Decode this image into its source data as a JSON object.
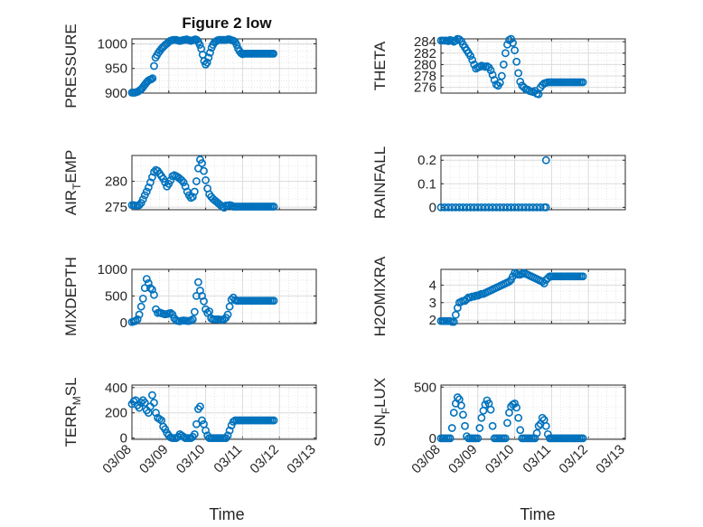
{
  "figure": {
    "title": "Figure 2 low",
    "marker_color": "#0072bd",
    "date_ticks": [
      "03/08",
      "03/09",
      "03/10",
      "03/11",
      "03/12",
      "03/13"
    ],
    "xlabel": "Time"
  },
  "chart_data": [
    {
      "type": "scatter",
      "name": "pressure",
      "ylabel": "PRESSURE",
      "ylim": [
        900,
        1010
      ],
      "yticks": [
        900,
        950,
        1000
      ],
      "ytick_labels": [
        "900",
        "950",
        "1000"
      ],
      "xlim": [
        0,
        5
      ],
      "x": [
        0,
        0.04,
        0.08,
        0.12,
        0.16,
        0.2,
        0.24,
        0.28,
        0.32,
        0.36,
        0.4,
        0.44,
        0.48,
        0.52,
        0.56,
        0.6,
        0.64,
        0.68,
        0.72,
        0.76,
        0.8,
        0.84,
        0.88,
        0.92,
        0.96,
        1.0,
        1.04,
        1.08,
        1.12,
        1.16,
        1.2,
        1.24,
        1.28,
        1.32,
        1.36,
        1.4,
        1.44,
        1.48,
        1.52,
        1.56,
        1.6,
        1.64,
        1.68,
        1.72,
        1.76,
        1.8,
        1.84,
        1.88,
        1.92,
        1.96,
        2.0,
        2.04,
        2.08,
        2.12,
        2.16,
        2.2,
        2.24,
        2.28,
        2.32,
        2.36,
        2.4,
        2.44,
        2.48,
        2.52,
        2.56,
        2.6,
        2.64,
        2.68,
        2.72,
        2.76,
        2.8,
        2.84,
        2.88,
        2.92,
        2.96,
        3.0,
        3.04,
        3.08,
        3.12,
        3.16,
        3.2,
        3.24,
        3.28,
        3.32,
        3.36,
        3.4,
        3.44,
        3.48,
        3.52,
        3.56,
        3.6,
        3.64,
        3.68,
        3.72,
        3.76,
        3.8,
        3.84
      ],
      "y": [
        901,
        901,
        901,
        902,
        903,
        905,
        907,
        910,
        914,
        918,
        922,
        925,
        927,
        928,
        930,
        955,
        972,
        977,
        982,
        986,
        990,
        993,
        996,
        999,
        1001,
        1004,
        1006,
        1007,
        1008,
        1008,
        1008,
        1007,
        1006,
        1006,
        1007,
        1008,
        1008,
        1009,
        1008,
        1007,
        1006,
        1007,
        1008,
        1009,
        1008,
        1004,
        998,
        990,
        978,
        965,
        958,
        962,
        972,
        982,
        992,
        998,
        1003,
        1005,
        1007,
        1008,
        1008,
        1008,
        1008,
        1008,
        1008,
        1009,
        1009,
        1008,
        1007,
        1006,
        1004,
        998,
        990,
        985,
        981,
        979,
        980,
        980,
        980,
        980,
        980,
        980,
        980,
        980,
        980,
        980,
        980,
        980,
        980,
        980,
        980,
        980,
        980,
        980,
        980,
        980,
        980
      ]
    },
    {
      "type": "scatter",
      "name": "theta",
      "ylabel": "THETA",
      "ylim": [
        275,
        284.5
      ],
      "yticks": [
        276,
        278,
        280,
        282,
        284
      ],
      "ytick_labels": [
        "276",
        "278",
        "280",
        "282",
        "284"
      ],
      "xlim": [
        0,
        5
      ],
      "x": [
        0,
        0.05,
        0.1,
        0.15,
        0.2,
        0.25,
        0.3,
        0.35,
        0.4,
        0.45,
        0.5,
        0.55,
        0.6,
        0.65,
        0.7,
        0.75,
        0.8,
        0.85,
        0.9,
        0.95,
        1.0,
        1.05,
        1.1,
        1.15,
        1.2,
        1.25,
        1.3,
        1.35,
        1.4,
        1.45,
        1.5,
        1.55,
        1.6,
        1.65,
        1.7,
        1.75,
        1.8,
        1.85,
        1.9,
        1.95,
        2.0,
        2.05,
        2.1,
        2.15,
        2.2,
        2.25,
        2.3,
        2.35,
        2.4,
        2.45,
        2.5,
        2.55,
        2.6,
        2.65,
        2.7,
        2.75,
        2.8,
        2.85,
        2.9,
        2.95,
        3.0,
        3.05,
        3.1,
        3.15,
        3.2,
        3.25,
        3.3,
        3.35,
        3.4,
        3.45,
        3.5,
        3.55,
        3.6,
        3.65,
        3.7,
        3.75,
        3.8,
        3.85
      ],
      "y": [
        284.2,
        284.2,
        284.2,
        284.2,
        284.1,
        284.3,
        284.2,
        284.0,
        284.2,
        284.5,
        284.4,
        284.1,
        283.5,
        283.0,
        282.5,
        282.0,
        281.5,
        280.8,
        280.0,
        279.3,
        279.5,
        279.6,
        279.8,
        279.7,
        279.6,
        279.7,
        279.5,
        279.0,
        278.2,
        277.3,
        276.5,
        276.3,
        276.8,
        278.0,
        280.0,
        282.0,
        283.5,
        284.3,
        284.5,
        283.8,
        282.5,
        280.5,
        278.5,
        277.0,
        276.3,
        276.0,
        275.7,
        275.6,
        275.4,
        275.3,
        275.2,
        275.4,
        274.9,
        274.8,
        276.0,
        276.4,
        276.7,
        276.8,
        276.9,
        276.9,
        276.9,
        276.9,
        276.9,
        276.9,
        276.9,
        276.9,
        276.9,
        276.9,
        276.9,
        276.9,
        276.9,
        276.9,
        276.9,
        276.9,
        276.9,
        276.9,
        276.9,
        276.9
      ]
    },
    {
      "type": "scatter",
      "name": "air_temp",
      "ylabel": "AIR_TEMP",
      "ylabel_main": "AIR",
      "ylabel_sub": "T",
      "ylabel_rest": "EMP",
      "ylim": [
        274.5,
        285
      ],
      "yticks": [
        275,
        280
      ],
      "ytick_labels": [
        "275",
        "280"
      ],
      "xlim": [
        0,
        5
      ],
      "x": [
        0,
        0.05,
        0.1,
        0.15,
        0.2,
        0.25,
        0.3,
        0.35,
        0.4,
        0.45,
        0.5,
        0.55,
        0.6,
        0.65,
        0.7,
        0.75,
        0.8,
        0.85,
        0.9,
        0.95,
        1.0,
        1.05,
        1.1,
        1.15,
        1.2,
        1.25,
        1.3,
        1.35,
        1.4,
        1.45,
        1.5,
        1.55,
        1.6,
        1.65,
        1.7,
        1.75,
        1.8,
        1.85,
        1.9,
        1.95,
        2.0,
        2.05,
        2.1,
        2.15,
        2.2,
        2.25,
        2.3,
        2.35,
        2.4,
        2.45,
        2.5,
        2.55,
        2.6,
        2.65,
        2.7,
        2.75,
        2.8,
        2.85,
        2.9,
        2.95,
        3.0,
        3.05,
        3.1,
        3.15,
        3.2,
        3.25,
        3.3,
        3.35,
        3.4,
        3.45,
        3.5,
        3.55,
        3.6,
        3.65,
        3.7,
        3.75,
        3.8,
        3.85
      ],
      "y": [
        275.4,
        275.4,
        275.3,
        275.3,
        275.4,
        275.8,
        276.5,
        277.3,
        278.0,
        278.8,
        279.8,
        280.8,
        281.8,
        282.2,
        282.0,
        281.5,
        281.0,
        280.5,
        279.8,
        279.0,
        279.5,
        280.2,
        281.0,
        281.2,
        281.0,
        280.8,
        280.5,
        280.2,
        279.8,
        279.0,
        278.0,
        277.3,
        276.8,
        277.0,
        278.0,
        280.0,
        282.5,
        284.2,
        283.5,
        282.0,
        280.2,
        278.6,
        277.5,
        277.0,
        276.6,
        276.3,
        276.0,
        275.7,
        275.4,
        275.1,
        274.9,
        275.3,
        275.3,
        275.4,
        275.3,
        275.1,
        275.1,
        275.1,
        275.1,
        275.1,
        275.1,
        275.1,
        275.1,
        275.1,
        275.1,
        275.1,
        275.1,
        275.1,
        275.1,
        275.1,
        275.1,
        275.1,
        275.1,
        275.1,
        275.1,
        275.1,
        275.1,
        275.1
      ]
    },
    {
      "type": "scatter",
      "name": "rainfall",
      "ylabel": "RAINFALL",
      "ylim": [
        -0.01,
        0.22
      ],
      "yticks": [
        0,
        0.1,
        0.2
      ],
      "ytick_labels": [
        "0",
        "0.1",
        "0.2"
      ],
      "xlim": [
        0,
        5
      ],
      "x": [
        0,
        0.1,
        0.2,
        0.3,
        0.4,
        0.5,
        0.6,
        0.7,
        0.8,
        0.9,
        1.0,
        1.1,
        1.2,
        1.3,
        1.4,
        1.5,
        1.6,
        1.7,
        1.8,
        1.9,
        2.0,
        2.1,
        2.2,
        2.3,
        2.4,
        2.5,
        2.6,
        2.7,
        2.8,
        2.85,
        2.85
      ],
      "y": [
        0,
        0,
        0,
        0,
        0,
        0,
        0,
        0,
        0,
        0,
        0,
        0,
        0,
        0,
        0,
        0,
        0,
        0,
        0,
        0,
        0,
        0,
        0,
        0,
        0,
        0,
        0,
        0,
        0,
        0,
        0.2
      ]
    },
    {
      "type": "scatter",
      "name": "mixdepth",
      "ylabel": "MIXDEPTH",
      "ylim": [
        -20,
        1000
      ],
      "yticks": [
        0,
        500,
        1000
      ],
      "ytick_labels": [
        "0",
        "500",
        "1000"
      ],
      "xlim": [
        0,
        5
      ],
      "x": [
        0,
        0.05,
        0.1,
        0.15,
        0.2,
        0.25,
        0.3,
        0.35,
        0.4,
        0.45,
        0.5,
        0.55,
        0.6,
        0.65,
        0.7,
        0.75,
        0.8,
        0.85,
        0.9,
        0.95,
        1.0,
        1.05,
        1.1,
        1.15,
        1.2,
        1.25,
        1.3,
        1.35,
        1.4,
        1.45,
        1.5,
        1.55,
        1.6,
        1.65,
        1.7,
        1.75,
        1.8,
        1.85,
        1.9,
        1.95,
        2.0,
        2.05,
        2.1,
        2.15,
        2.2,
        2.25,
        2.3,
        2.35,
        2.4,
        2.45,
        2.5,
        2.55,
        2.6,
        2.65,
        2.7,
        2.75,
        2.8,
        2.85,
        2.9,
        2.95,
        3.0,
        3.05,
        3.1,
        3.15,
        3.2,
        3.25,
        3.3,
        3.35,
        3.4,
        3.45,
        3.5,
        3.55,
        3.6,
        3.65,
        3.7,
        3.75,
        3.8,
        3.85
      ],
      "y": [
        10,
        20,
        30,
        60,
        150,
        300,
        450,
        650,
        820,
        740,
        650,
        620,
        520,
        250,
        180,
        190,
        175,
        165,
        155,
        160,
        170,
        180,
        150,
        80,
        40,
        30,
        25,
        35,
        40,
        35,
        30,
        30,
        40,
        60,
        200,
        500,
        760,
        600,
        500,
        400,
        250,
        180,
        210,
        80,
        60,
        60,
        60,
        60,
        55,
        55,
        60,
        90,
        150,
        300,
        430,
        470,
        420,
        410,
        410,
        410,
        410,
        410,
        410,
        410,
        410,
        410,
        410,
        410,
        410,
        410,
        410,
        410,
        410,
        410,
        410,
        410,
        410,
        410
      ]
    },
    {
      "type": "scatter",
      "name": "h2omixra",
      "ylabel": "H2OMIXRA",
      "ylim": [
        1.8,
        4.9
      ],
      "yticks": [
        2,
        3,
        4
      ],
      "ytick_labels": [
        "2",
        "3",
        "4"
      ],
      "xlim": [
        0,
        5
      ],
      "x": [
        0,
        0.05,
        0.1,
        0.15,
        0.2,
        0.25,
        0.3,
        0.35,
        0.4,
        0.45,
        0.5,
        0.55,
        0.6,
        0.65,
        0.7,
        0.75,
        0.8,
        0.85,
        0.9,
        0.95,
        1.0,
        1.05,
        1.1,
        1.15,
        1.2,
        1.25,
        1.3,
        1.35,
        1.4,
        1.45,
        1.5,
        1.55,
        1.6,
        1.65,
        1.7,
        1.75,
        1.8,
        1.85,
        1.9,
        1.95,
        2.0,
        2.05,
        2.1,
        2.15,
        2.2,
        2.25,
        2.3,
        2.35,
        2.4,
        2.45,
        2.5,
        2.55,
        2.6,
        2.65,
        2.7,
        2.75,
        2.8,
        2.85,
        2.9,
        2.95,
        3.0,
        3.05,
        3.1,
        3.15,
        3.2,
        3.25,
        3.3,
        3.35,
        3.4,
        3.45,
        3.5,
        3.55,
        3.6,
        3.65,
        3.7,
        3.75,
        3.8,
        3.85
      ],
      "y": [
        1.95,
        1.95,
        1.95,
        1.95,
        1.95,
        1.95,
        1.9,
        1.9,
        2.3,
        2.7,
        3.0,
        3.05,
        3.1,
        3.1,
        3.2,
        3.3,
        3.3,
        3.35,
        3.35,
        3.4,
        3.4,
        3.45,
        3.5,
        3.5,
        3.55,
        3.6,
        3.65,
        3.7,
        3.75,
        3.8,
        3.85,
        3.9,
        3.95,
        4.0,
        4.05,
        4.1,
        4.15,
        4.2,
        4.3,
        4.5,
        4.7,
        4.65,
        4.6,
        4.6,
        4.65,
        4.7,
        4.65,
        4.6,
        4.55,
        4.5,
        4.45,
        4.4,
        4.35,
        4.3,
        4.25,
        4.2,
        4.1,
        4.3,
        4.4,
        4.5,
        4.5,
        4.5,
        4.5,
        4.5,
        4.5,
        4.5,
        4.5,
        4.5,
        4.5,
        4.5,
        4.5,
        4.5,
        4.5,
        4.5,
        4.5,
        4.5,
        4.5,
        4.5
      ]
    },
    {
      "type": "scatter",
      "name": "terr_msl",
      "ylabel": "TERR_MSL",
      "ylabel_main": "TERR",
      "ylabel_sub": "M",
      "ylabel_rest": "SL",
      "ylim": [
        -10,
        420
      ],
      "yticks": [
        0,
        200,
        400
      ],
      "ytick_labels": [
        "0",
        "200",
        "400"
      ],
      "xlim": [
        0,
        5
      ],
      "x": [
        0,
        0.05,
        0.1,
        0.15,
        0.2,
        0.25,
        0.3,
        0.35,
        0.4,
        0.45,
        0.5,
        0.55,
        0.6,
        0.65,
        0.7,
        0.75,
        0.8,
        0.85,
        0.9,
        0.95,
        1.0,
        1.05,
        1.1,
        1.15,
        1.2,
        1.25,
        1.3,
        1.35,
        1.4,
        1.45,
        1.5,
        1.55,
        1.6,
        1.65,
        1.7,
        1.75,
        1.8,
        1.85,
        1.9,
        1.95,
        2.0,
        2.05,
        2.1,
        2.15,
        2.2,
        2.25,
        2.3,
        2.35,
        2.4,
        2.45,
        2.5,
        2.55,
        2.6,
        2.65,
        2.7,
        2.75,
        2.8,
        2.85,
        2.9,
        2.95,
        3.0,
        3.05,
        3.1,
        3.15,
        3.2,
        3.25,
        3.3,
        3.35,
        3.4,
        3.45,
        3.5,
        3.55,
        3.6,
        3.65,
        3.7,
        3.75,
        3.8,
        3.85
      ],
      "y": [
        270,
        290,
        300,
        260,
        240,
        280,
        300,
        280,
        220,
        200,
        250,
        340,
        280,
        200,
        160,
        150,
        140,
        90,
        70,
        40,
        20,
        5,
        0,
        0,
        0,
        10,
        30,
        20,
        10,
        0,
        0,
        0,
        0,
        10,
        30,
        110,
        230,
        250,
        140,
        110,
        60,
        20,
        0,
        0,
        0,
        0,
        0,
        0,
        0,
        0,
        0,
        0,
        20,
        60,
        100,
        130,
        140,
        140,
        140,
        140,
        140,
        140,
        140,
        140,
        140,
        140,
        140,
        140,
        140,
        140,
        140,
        140,
        140,
        140,
        140,
        140,
        140,
        140
      ]
    },
    {
      "type": "scatter",
      "name": "sun_flux",
      "ylabel": "SUN_FLUX",
      "ylabel_main": "SUN",
      "ylabel_sub": "F",
      "ylabel_rest": "LUX",
      "ylim": [
        -10,
        520
      ],
      "yticks": [
        0,
        500
      ],
      "ytick_labels": [
        "0",
        "500"
      ],
      "xlim": [
        0,
        5
      ],
      "x": [
        0,
        0.05,
        0.1,
        0.15,
        0.2,
        0.25,
        0.3,
        0.35,
        0.4,
        0.45,
        0.5,
        0.55,
        0.6,
        0.65,
        0.7,
        0.75,
        0.8,
        0.85,
        0.9,
        0.95,
        1.0,
        1.05,
        1.1,
        1.15,
        1.2,
        1.25,
        1.3,
        1.35,
        1.4,
        1.45,
        1.5,
        1.55,
        1.6,
        1.65,
        1.7,
        1.75,
        1.8,
        1.85,
        1.9,
        1.95,
        2.0,
        2.05,
        2.1,
        2.15,
        2.2,
        2.25,
        2.3,
        2.35,
        2.4,
        2.45,
        2.5,
        2.55,
        2.6,
        2.65,
        2.7,
        2.75,
        2.8,
        2.85,
        2.9,
        2.95,
        3.0,
        3.05,
        3.1,
        3.15,
        3.2,
        3.25,
        3.3,
        3.35,
        3.4,
        3.45,
        3.5,
        3.55,
        3.6,
        3.65,
        3.7,
        3.75,
        3.8,
        3.85
      ],
      "y": [
        0,
        0,
        0,
        0,
        0,
        0,
        100,
        250,
        340,
        400,
        380,
        320,
        230,
        120,
        20,
        0,
        0,
        0,
        0,
        0,
        0,
        100,
        200,
        270,
        330,
        370,
        340,
        280,
        120,
        0,
        0,
        0,
        0,
        0,
        0,
        0,
        150,
        250,
        310,
        330,
        340,
        300,
        200,
        80,
        0,
        0,
        0,
        0,
        0,
        0,
        0,
        0,
        50,
        120,
        140,
        200,
        180,
        120,
        40,
        0,
        0,
        0,
        0,
        0,
        0,
        0,
        0,
        0,
        0,
        0,
        0,
        0,
        0,
        0,
        0,
        0,
        0,
        0
      ]
    }
  ]
}
